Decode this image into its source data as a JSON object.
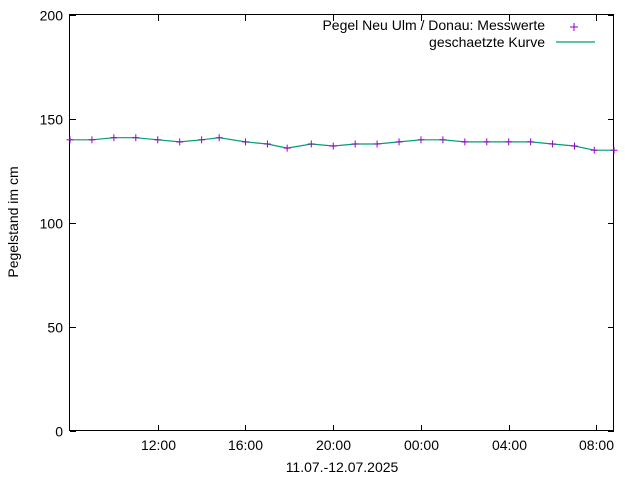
{
  "chart_data": {
    "type": "line",
    "title": "",
    "xlabel": "11.07.-12.07.2025",
    "ylabel": "Pegelstand im cm",
    "ylim": [
      0,
      200
    ],
    "y_ticks": [
      0,
      50,
      100,
      150,
      200
    ],
    "x_range_hours": [
      8.0,
      32.8
    ],
    "x_ticks": [
      {
        "hour": 12,
        "label": "12:00"
      },
      {
        "hour": 16,
        "label": "16:00"
      },
      {
        "hour": 20,
        "label": "20:00"
      },
      {
        "hour": 24,
        "label": "00:00"
      },
      {
        "hour": 28,
        "label": "04:00"
      },
      {
        "hour": 32,
        "label": "08:00"
      }
    ],
    "grid": false,
    "legend_position": "top-right",
    "series": [
      {
        "name": "Pegel Neu Ulm / Donau: Messwerte",
        "style": "points",
        "marker": "+",
        "color": "#9400d3",
        "x": [
          8.0,
          9.0,
          10.0,
          11.0,
          12.0,
          13.0,
          14.0,
          14.8,
          16.0,
          17.0,
          17.9,
          19.0,
          20.0,
          21.0,
          22.0,
          23.0,
          24.0,
          25.0,
          26.0,
          27.0,
          28.0,
          29.0,
          30.0,
          31.0,
          31.9,
          32.8
        ],
        "y": [
          140,
          140,
          141,
          141,
          140,
          139,
          140,
          141,
          139,
          138,
          136,
          138,
          137,
          138,
          138,
          139,
          140,
          140,
          139,
          139,
          139,
          139,
          138,
          137,
          135,
          135
        ]
      },
      {
        "name": "geschaetzte Kurve",
        "style": "line",
        "color": "#009e73",
        "x": [
          8.0,
          9.0,
          10.0,
          11.0,
          12.0,
          13.0,
          14.0,
          14.8,
          16.0,
          17.0,
          17.9,
          19.0,
          20.0,
          21.0,
          22.0,
          23.0,
          24.0,
          25.0,
          26.0,
          27.0,
          28.0,
          29.0,
          30.0,
          31.0,
          31.9,
          32.8
        ],
        "y": [
          140,
          140,
          141,
          141,
          140,
          139,
          140,
          141,
          139,
          138,
          136,
          138,
          137,
          138,
          138,
          139,
          140,
          140,
          139,
          139,
          139,
          139,
          138,
          137,
          135,
          135
        ]
      }
    ]
  }
}
